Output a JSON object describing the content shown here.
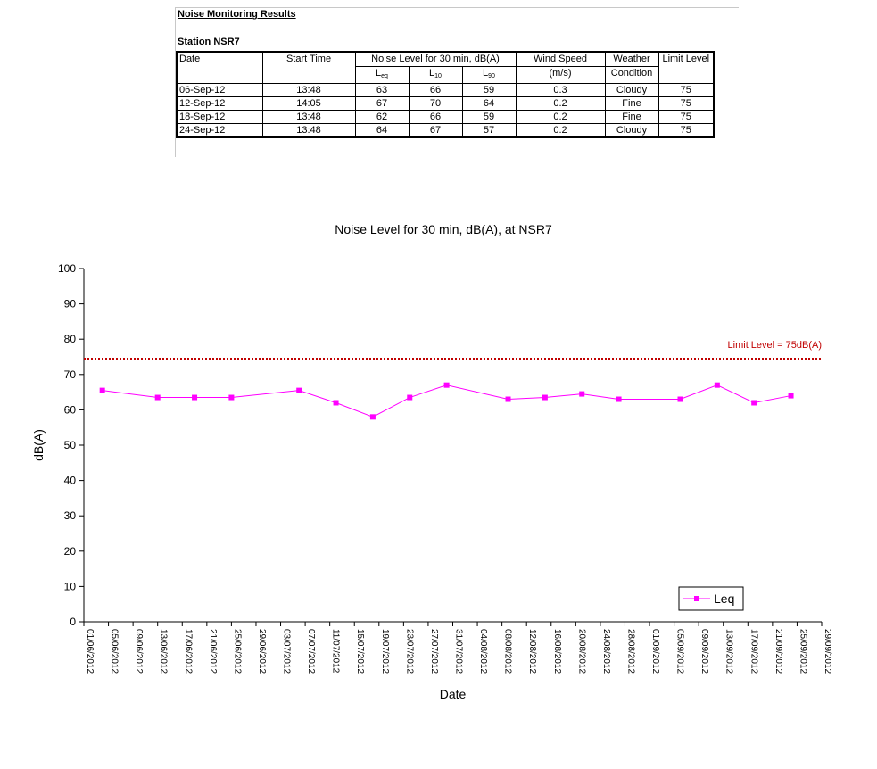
{
  "report": {
    "title": "Noise Monitoring Results",
    "station": "Station NSR7"
  },
  "table": {
    "headers": {
      "date": "Date",
      "start_time": "Start Time",
      "noise_level": "Noise Level for 30 min, dB(A)",
      "l_eq_main": "L",
      "l_eq_sub": "eq",
      "l_10_main": "L",
      "l_10_sub": "10",
      "l_90_main": "L",
      "l_90_sub": "90",
      "wind_speed": "Wind Speed",
      "wind_unit": "(m/s)",
      "weather_1": "Weather",
      "weather_2": "Condition",
      "limit": "Limit Level"
    },
    "rows": [
      {
        "date": "06-Sep-12",
        "start": "13:48",
        "leq": "63",
        "l10": "66",
        "l90": "59",
        "wind": "0.3",
        "weather": "Cloudy",
        "limit": "75"
      },
      {
        "date": "12-Sep-12",
        "start": "14:05",
        "leq": "67",
        "l10": "70",
        "l90": "64",
        "wind": "0.2",
        "weather": "Fine",
        "limit": "75"
      },
      {
        "date": "18-Sep-12",
        "start": "13:48",
        "leq": "62",
        "l10": "66",
        "l90": "59",
        "wind": "0.2",
        "weather": "Fine",
        "limit": "75"
      },
      {
        "date": "24-Sep-12",
        "start": "13:48",
        "leq": "64",
        "l10": "67",
        "l90": "57",
        "wind": "0.2",
        "weather": "Cloudy",
        "limit": "75"
      }
    ]
  },
  "chart_data": {
    "type": "line",
    "title": "Noise Level for 30 min, dB(A), at NSR7",
    "xlabel": "Date",
    "ylabel": "dB(A)",
    "ylim": [
      0,
      100
    ],
    "yticks": [
      0,
      10,
      20,
      30,
      40,
      50,
      60,
      70,
      80,
      90,
      100
    ],
    "xlim": [
      "01/06/2012",
      "29/09/2012"
    ],
    "xticks": [
      "01/06/2012",
      "05/06/2012",
      "09/06/2012",
      "13/06/2012",
      "17/06/2012",
      "21/06/2012",
      "25/06/2012",
      "29/06/2012",
      "03/07/2012",
      "07/07/2012",
      "11/07/2012",
      "15/07/2012",
      "19/07/2012",
      "23/07/2012",
      "27/07/2012",
      "31/07/2012",
      "04/08/2012",
      "08/08/2012",
      "12/08/2012",
      "16/08/2012",
      "20/08/2012",
      "24/08/2012",
      "28/08/2012",
      "01/09/2012",
      "05/09/2012",
      "09/09/2012",
      "13/09/2012",
      "17/09/2012",
      "21/09/2012",
      "25/09/2012",
      "29/09/2012"
    ],
    "series": [
      {
        "name": "Leq",
        "color": "#ff00ff",
        "marker": "square",
        "points": [
          {
            "x": "04/06/2012",
            "y": 65.5
          },
          {
            "x": "13/06/2012",
            "y": 63.5
          },
          {
            "x": "19/06/2012",
            "y": 63.5
          },
          {
            "x": "25/06/2012",
            "y": 63.5
          },
          {
            "x": "06/07/2012",
            "y": 65.5
          },
          {
            "x": "12/07/2012",
            "y": 62
          },
          {
            "x": "18/07/2012",
            "y": 58
          },
          {
            "x": "24/07/2012",
            "y": 63.5
          },
          {
            "x": "30/07/2012",
            "y": 67
          },
          {
            "x": "09/08/2012",
            "y": 63
          },
          {
            "x": "15/08/2012",
            "y": 63.5
          },
          {
            "x": "21/08/2012",
            "y": 64.5
          },
          {
            "x": "27/08/2012",
            "y": 63
          },
          {
            "x": "06/09/2012",
            "y": 63
          },
          {
            "x": "12/09/2012",
            "y": 67
          },
          {
            "x": "18/09/2012",
            "y": 62
          },
          {
            "x": "24/09/2012",
            "y": 64
          }
        ]
      }
    ],
    "limit_line": {
      "y": 74.5,
      "label": "Limit Level = 75dB(A)",
      "color": "#c00000",
      "style": "dotted"
    },
    "grid": false,
    "legend": "bottom-right"
  }
}
